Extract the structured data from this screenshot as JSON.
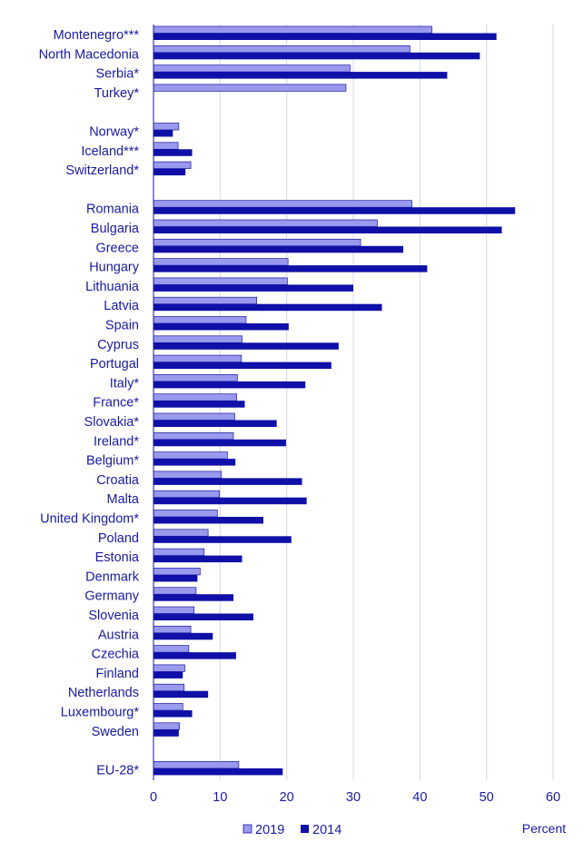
{
  "chart_data": {
    "type": "bar",
    "orientation": "horizontal",
    "unit": "Percent",
    "xlim": [
      0,
      60
    ],
    "ticks": [
      0,
      10,
      20,
      30,
      40,
      50,
      60
    ],
    "grid": true,
    "legend_placement": "bottom",
    "groups": [
      {
        "categories": [
          "Montenegro***",
          "North Macedonia",
          "Serbia*",
          "Turkey*"
        ]
      },
      {
        "categories": [
          "Norway*",
          "Iceland***",
          "Switzerland*"
        ]
      },
      {
        "categories": [
          "Romania",
          "Bulgaria",
          "Greece",
          "Hungary",
          "Lithuania",
          "Latvia",
          "Spain",
          "Cyprus",
          "Portugal",
          "Italy*",
          "France*",
          "Slovakia*",
          "Ireland*",
          "Belgium*",
          "Croatia",
          "Malta",
          "United Kingdom*",
          "Poland",
          "Estonia",
          "Denmark",
          "Germany",
          "Slovenia",
          "Austria",
          "Czechia",
          "Finland",
          "Netherlands",
          "Luxembourg*",
          "Sweden"
        ]
      },
      {
        "categories": [
          "EU-28*"
        ]
      }
    ],
    "categories": [
      "Montenegro***",
      "North Macedonia",
      "Serbia*",
      "Turkey*",
      "Norway*",
      "Iceland***",
      "Switzerland*",
      "Romania",
      "Bulgaria",
      "Greece",
      "Hungary",
      "Lithuania",
      "Latvia",
      "Spain",
      "Cyprus",
      "Portugal",
      "Italy*",
      "France*",
      "Slovakia*",
      "Ireland*",
      "Belgium*",
      "Croatia",
      "Malta",
      "United Kingdom*",
      "Poland",
      "Estonia",
      "Denmark",
      "Germany",
      "Slovenia",
      "Austria",
      "Czechia",
      "Finland",
      "Netherlands",
      "Luxembourg*",
      "Sweden",
      "EU-28*"
    ],
    "series": [
      {
        "name": "2019",
        "color": "#9999ee",
        "values": [
          41.8,
          38.5,
          29.5,
          28.9,
          3.8,
          3.7,
          5.6,
          38.8,
          33.6,
          31.1,
          20.2,
          20.1,
          15.5,
          13.9,
          13.3,
          13.2,
          12.6,
          12.5,
          12.2,
          12.0,
          11.1,
          10.2,
          9.9,
          9.6,
          8.2,
          7.6,
          7.0,
          6.4,
          6.1,
          5.6,
          5.3,
          4.7,
          4.6,
          4.4,
          3.9,
          12.8
        ]
      },
      {
        "name": "2014",
        "color": "#1010a8",
        "values": [
          51.5,
          49.0,
          44.1,
          null,
          2.9,
          5.8,
          4.8,
          54.3,
          52.3,
          37.5,
          41.1,
          30.0,
          34.3,
          20.3,
          27.8,
          26.7,
          22.8,
          13.7,
          18.5,
          19.9,
          12.3,
          22.3,
          23.0,
          16.5,
          20.7,
          13.3,
          6.6,
          12.0,
          15.0,
          8.9,
          12.4,
          4.4,
          8.2,
          5.8,
          3.8,
          19.4
        ]
      }
    ]
  }
}
